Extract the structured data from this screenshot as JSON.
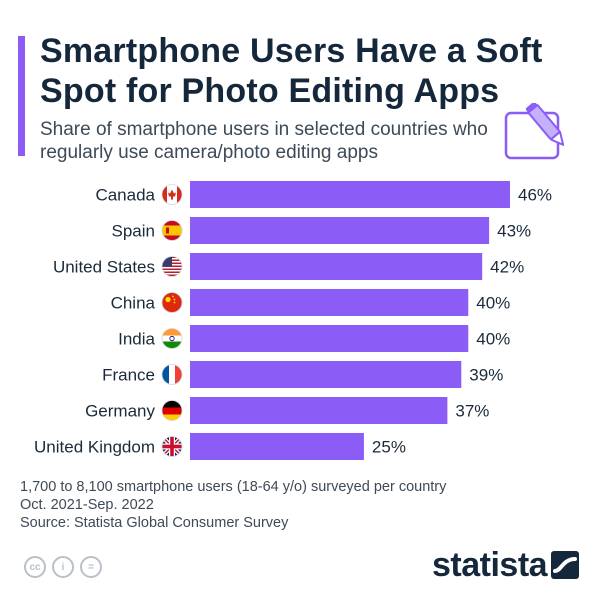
{
  "header": {
    "title": "Smartphone Users Have a Soft Spot for Photo Editing Apps",
    "subtitle": "Share of smartphone users in selected countries who regularly use camera/photo editing apps"
  },
  "colors": {
    "accent": "#8b5cf6",
    "bar": "#8b5cf6",
    "text": "#1b2a3a"
  },
  "chart_data": {
    "type": "bar",
    "orientation": "horizontal",
    "categories": [
      "Canada",
      "Spain",
      "United States",
      "China",
      "India",
      "France",
      "Germany",
      "United Kingdom"
    ],
    "values": [
      46,
      43,
      42,
      40,
      40,
      39,
      37,
      25
    ],
    "value_labels": [
      "46%",
      "43%",
      "42%",
      "40%",
      "40%",
      "39%",
      "37%",
      "25%"
    ],
    "flags": [
      "canada-flag-icon",
      "spain-flag-icon",
      "united-states-flag-icon",
      "china-flag-icon",
      "india-flag-icon",
      "france-flag-icon",
      "germany-flag-icon",
      "united-kingdom-flag-icon"
    ],
    "xlim": [
      0,
      50
    ],
    "grid": false
  },
  "footnote": {
    "line1": "1,700 to 8,100 smartphone users (18-64 y/o) surveyed per country",
    "line2": "Oct. 2021-Sep. 2022",
    "line3": "Source: Statista Global Consumer Survey"
  },
  "license": {
    "cc": "cc",
    "by": "i",
    "nd": "="
  },
  "brand": {
    "name": "statista"
  }
}
